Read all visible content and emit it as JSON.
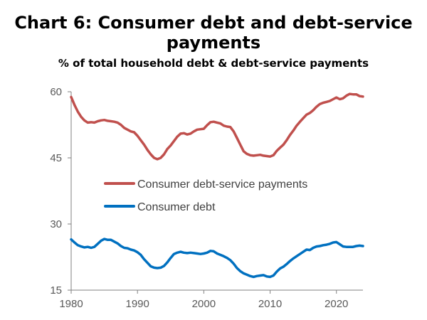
{
  "chart_data": {
    "type": "line",
    "title": "Chart 6: Consumer debt and debt-service payments",
    "subtitle": "% of total household debt & debt-service payments",
    "xlabel": "",
    "ylabel": "",
    "xlim": [
      1980,
      2024
    ],
    "ylim": [
      15,
      60
    ],
    "x_ticks": [
      1980,
      1990,
      2000,
      2010,
      2020
    ],
    "y_ticks": [
      15,
      30,
      45,
      60
    ],
    "grid": false,
    "legend_position": "center-left",
    "series": [
      {
        "name": "Consumer debt-service payments",
        "color": "#C0504D",
        "points": [
          [
            1980.0,
            58.8
          ],
          [
            1980.5,
            57.0
          ],
          [
            1981.0,
            55.5
          ],
          [
            1981.5,
            54.3
          ],
          [
            1982.0,
            53.5
          ],
          [
            1982.5,
            53.0
          ],
          [
            1983.0,
            53.1
          ],
          [
            1983.5,
            53.0
          ],
          [
            1984.0,
            53.3
          ],
          [
            1984.5,
            53.5
          ],
          [
            1985.0,
            53.6
          ],
          [
            1985.5,
            53.4
          ],
          [
            1986.0,
            53.3
          ],
          [
            1986.5,
            53.2
          ],
          [
            1987.0,
            53.0
          ],
          [
            1987.5,
            52.5
          ],
          [
            1988.0,
            51.8
          ],
          [
            1988.5,
            51.4
          ],
          [
            1989.0,
            51.0
          ],
          [
            1989.5,
            50.8
          ],
          [
            1990.0,
            50.0
          ],
          [
            1990.5,
            49.0
          ],
          [
            1991.0,
            48.0
          ],
          [
            1991.5,
            46.8
          ],
          [
            1992.0,
            45.8
          ],
          [
            1992.5,
            45.0
          ],
          [
            1993.0,
            44.7
          ],
          [
            1993.5,
            45.0
          ],
          [
            1994.0,
            45.8
          ],
          [
            1994.5,
            47.0
          ],
          [
            1995.0,
            47.8
          ],
          [
            1995.5,
            48.8
          ],
          [
            1996.0,
            49.8
          ],
          [
            1996.5,
            50.5
          ],
          [
            1997.0,
            50.6
          ],
          [
            1997.5,
            50.3
          ],
          [
            1998.0,
            50.5
          ],
          [
            1998.5,
            51.0
          ],
          [
            1999.0,
            51.4
          ],
          [
            1999.5,
            51.5
          ],
          [
            2000.0,
            51.6
          ],
          [
            2000.5,
            52.4
          ],
          [
            2001.0,
            53.1
          ],
          [
            2001.5,
            53.2
          ],
          [
            2002.0,
            53.0
          ],
          [
            2002.5,
            52.8
          ],
          [
            2003.0,
            52.3
          ],
          [
            2003.5,
            52.1
          ],
          [
            2004.0,
            52.0
          ],
          [
            2004.5,
            51.0
          ],
          [
            2005.0,
            49.5
          ],
          [
            2005.5,
            48.0
          ],
          [
            2006.0,
            46.5
          ],
          [
            2006.5,
            45.9
          ],
          [
            2007.0,
            45.6
          ],
          [
            2007.5,
            45.5
          ],
          [
            2008.0,
            45.6
          ],
          [
            2008.5,
            45.7
          ],
          [
            2009.0,
            45.5
          ],
          [
            2009.5,
            45.4
          ],
          [
            2010.0,
            45.3
          ],
          [
            2010.5,
            45.6
          ],
          [
            2011.0,
            46.6
          ],
          [
            2011.5,
            47.3
          ],
          [
            2012.0,
            48.0
          ],
          [
            2012.5,
            49.0
          ],
          [
            2013.0,
            50.2
          ],
          [
            2013.5,
            51.2
          ],
          [
            2014.0,
            52.3
          ],
          [
            2014.5,
            53.2
          ],
          [
            2015.0,
            54.0
          ],
          [
            2015.5,
            54.8
          ],
          [
            2016.0,
            55.2
          ],
          [
            2016.5,
            55.8
          ],
          [
            2017.0,
            56.6
          ],
          [
            2017.5,
            57.2
          ],
          [
            2018.0,
            57.5
          ],
          [
            2018.5,
            57.7
          ],
          [
            2019.0,
            57.9
          ],
          [
            2019.5,
            58.3
          ],
          [
            2020.0,
            58.7
          ],
          [
            2020.5,
            58.3
          ],
          [
            2021.0,
            58.5
          ],
          [
            2021.5,
            59.1
          ],
          [
            2022.0,
            59.5
          ],
          [
            2022.5,
            59.4
          ],
          [
            2023.0,
            59.4
          ],
          [
            2023.5,
            59.0
          ],
          [
            2024.0,
            58.9
          ]
        ]
      },
      {
        "name": "Consumer debt",
        "color": "#0070C0",
        "points": [
          [
            1980.0,
            26.5
          ],
          [
            1980.5,
            25.8
          ],
          [
            1981.0,
            25.2
          ],
          [
            1981.5,
            24.9
          ],
          [
            1982.0,
            24.7
          ],
          [
            1982.5,
            24.8
          ],
          [
            1983.0,
            24.6
          ],
          [
            1983.5,
            24.8
          ],
          [
            1984.0,
            25.5
          ],
          [
            1984.5,
            26.2
          ],
          [
            1985.0,
            26.6
          ],
          [
            1985.5,
            26.4
          ],
          [
            1986.0,
            26.4
          ],
          [
            1986.5,
            26.0
          ],
          [
            1987.0,
            25.6
          ],
          [
            1987.5,
            25.0
          ],
          [
            1988.0,
            24.6
          ],
          [
            1988.5,
            24.5
          ],
          [
            1989.0,
            24.2
          ],
          [
            1989.5,
            24.0
          ],
          [
            1990.0,
            23.6
          ],
          [
            1990.5,
            23.0
          ],
          [
            1991.0,
            22.0
          ],
          [
            1991.5,
            21.2
          ],
          [
            1992.0,
            20.4
          ],
          [
            1992.5,
            20.1
          ],
          [
            1993.0,
            20.0
          ],
          [
            1993.5,
            20.1
          ],
          [
            1994.0,
            20.5
          ],
          [
            1994.5,
            21.3
          ],
          [
            1995.0,
            22.3
          ],
          [
            1995.5,
            23.2
          ],
          [
            1996.0,
            23.5
          ],
          [
            1996.5,
            23.7
          ],
          [
            1997.0,
            23.5
          ],
          [
            1997.5,
            23.4
          ],
          [
            1998.0,
            23.5
          ],
          [
            1998.5,
            23.4
          ],
          [
            1999.0,
            23.3
          ],
          [
            1999.5,
            23.2
          ],
          [
            2000.0,
            23.3
          ],
          [
            2000.5,
            23.5
          ],
          [
            2001.0,
            23.9
          ],
          [
            2001.5,
            23.8
          ],
          [
            2002.0,
            23.3
          ],
          [
            2002.5,
            23.0
          ],
          [
            2003.0,
            22.7
          ],
          [
            2003.5,
            22.3
          ],
          [
            2004.0,
            21.8
          ],
          [
            2004.5,
            21.0
          ],
          [
            2005.0,
            20.0
          ],
          [
            2005.5,
            19.3
          ],
          [
            2006.0,
            18.8
          ],
          [
            2006.5,
            18.5
          ],
          [
            2007.0,
            18.2
          ],
          [
            2007.5,
            18.0
          ],
          [
            2008.0,
            18.2
          ],
          [
            2008.5,
            18.3
          ],
          [
            2009.0,
            18.4
          ],
          [
            2009.5,
            18.1
          ],
          [
            2010.0,
            18.0
          ],
          [
            2010.5,
            18.3
          ],
          [
            2011.0,
            19.2
          ],
          [
            2011.5,
            19.9
          ],
          [
            2012.0,
            20.3
          ],
          [
            2012.5,
            20.9
          ],
          [
            2013.0,
            21.6
          ],
          [
            2013.5,
            22.2
          ],
          [
            2014.0,
            22.7
          ],
          [
            2014.5,
            23.2
          ],
          [
            2015.0,
            23.7
          ],
          [
            2015.5,
            24.2
          ],
          [
            2016.0,
            24.1
          ],
          [
            2016.5,
            24.6
          ],
          [
            2017.0,
            24.9
          ],
          [
            2017.5,
            25.0
          ],
          [
            2018.0,
            25.2
          ],
          [
            2018.5,
            25.3
          ],
          [
            2019.0,
            25.5
          ],
          [
            2019.5,
            25.8
          ],
          [
            2020.0,
            25.9
          ],
          [
            2020.5,
            25.4
          ],
          [
            2021.0,
            24.9
          ],
          [
            2021.5,
            24.8
          ],
          [
            2022.0,
            24.8
          ],
          [
            2022.5,
            24.8
          ],
          [
            2023.0,
            25.0
          ],
          [
            2023.5,
            25.1
          ],
          [
            2024.0,
            25.0
          ]
        ]
      }
    ]
  }
}
